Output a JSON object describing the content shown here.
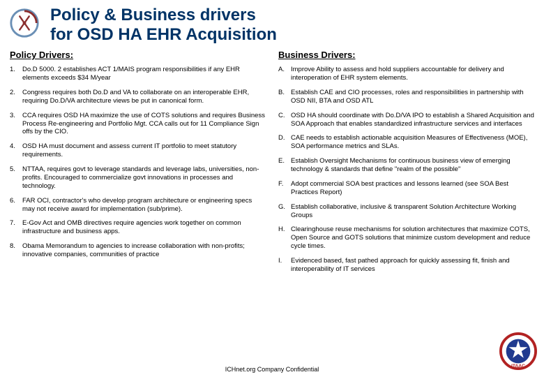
{
  "title_line1": "Policy & Business drivers",
  "title_line2": "for OSD HA EHR Acquisition",
  "left_heading": "Policy Drivers:",
  "right_heading": "Business Drivers:",
  "policy": [
    "Do.D 5000. 2 establishes ACT 1/MAIS program responsibilities if any EHR elements exceeds $34 M/year",
    "Congress requires both Do.D and VA to collaborate on an interoperable EHR, requiring Do.D/VA architecture views be put in canonical form.",
    "CCA requires OSD HA maximize the use of COTS solutions and requires Business Process Re-engineering and Portfolio Mgt.  CCA calls out for 11 Compliance Sign offs by the CIO.",
    "OSD HA must document and assess current IT portfolio to meet statutory requirements.",
    "NTTAA, requires govt to leverage standards and leverage labs, universities, non-profits.  Encouraged to commercialize govt innovations in processes and technology.",
    "FAR OCI, contractor's who develop program architecture or engineering specs may not receive award for implementation (sub/prime).",
    "E-Gov Act and OMB directives require agencies work together on common infrastructure and business apps.",
    "Obama Memorandum to agencies to increase collaboration with non-profits; innovative companies, communities of practice"
  ],
  "business": [
    "Improve Ability to assess and hold suppliers accountable for delivery and interoperation of EHR system elements.",
    "Establish CAE and CIO processes, roles and responsibilities in partnership with OSD NII, BTA and OSD ATL",
    "OSD HA should coordinate with Do.D/VA IPO to establish a Shared Acquisition and SOA Approach that enables standardized infrastructure services and interfaces",
    "CAE needs to establish actionable acquisition Measures of Effectiveness (MOE), SOA performance metrics and SLAs.",
    "Establish Oversight Mechanisms for continuous business view of emerging technology & standards that define \"realm of the possible\"",
    "Adopt commercial SOA best practices and lessons learned (see SOA Best Practices Report)",
    "Establish collaborative, inclusive & transparent Solution Architecture Working Groups",
    "Clearinghouse reuse mechanisms for solution architectures that maximize COTS, Open Source and GOTS solutions that minimize custom development and reduce cycle times.",
    "Evidenced based, fast pathed approach for quickly assessing fit, finish and interoperability of IT services"
  ],
  "footer": "ICHnet.org Company Confidential",
  "colors": {
    "title": "#003366",
    "text": "#000000",
    "logo_left_outer": "#6a8fb5",
    "logo_left_inner": "#8a2e2e",
    "logo_right_ring": "#b22222",
    "logo_right_star": "#ffffff"
  }
}
